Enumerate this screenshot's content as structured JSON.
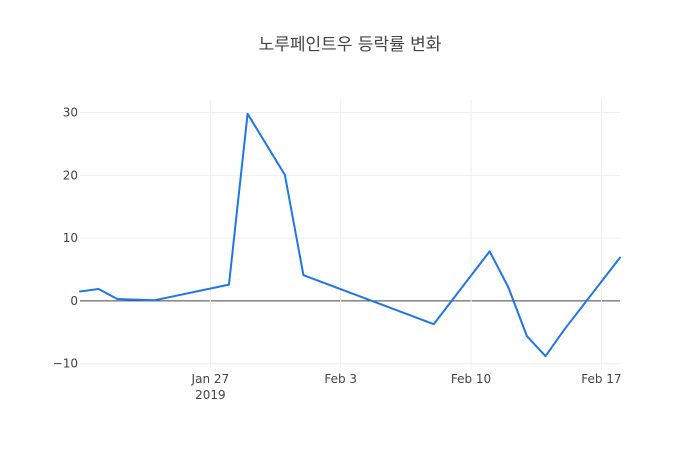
{
  "chart_data": {
    "type": "line",
    "title": "노루페인트우 등락률 변화",
    "xlabel": "",
    "ylabel": "",
    "x_range": [
      "2019-01-20",
      "2019-02-18"
    ],
    "ylim": [
      -11,
      32
    ],
    "y_ticks": [
      -10,
      0,
      10,
      20,
      30
    ],
    "y_tick_labels": [
      "−10",
      "0",
      "10",
      "20",
      "30"
    ],
    "x_ticks": [
      {
        "date": "2019-01-27",
        "label": "Jan 27",
        "sublabel": "2019"
      },
      {
        "date": "2019-02-03",
        "label": "Feb 3",
        "sublabel": ""
      },
      {
        "date": "2019-02-10",
        "label": "Feb 10",
        "sublabel": ""
      },
      {
        "date": "2019-02-17",
        "label": "Feb 17",
        "sublabel": ""
      }
    ],
    "grid": true,
    "colors": {
      "line": "#1f77e6",
      "grid": "#eeeeee",
      "zero": "#444444"
    },
    "series": [
      {
        "x": [
          "2019-01-20",
          "2019-01-21",
          "2019-01-22",
          "2019-01-24",
          "2019-01-28",
          "2019-01-29",
          "2019-01-31",
          "2019-02-01",
          "2019-02-08",
          "2019-02-11",
          "2019-02-12",
          "2019-02-13",
          "2019-02-14",
          "2019-02-15",
          "2019-02-18"
        ],
        "y": [
          1.5,
          1.9,
          0.3,
          0.1,
          2.6,
          29.8,
          20.1,
          4.1,
          -3.7,
          7.9,
          2.2,
          -5.6,
          -8.8,
          -4.6,
          6.9
        ]
      }
    ]
  }
}
